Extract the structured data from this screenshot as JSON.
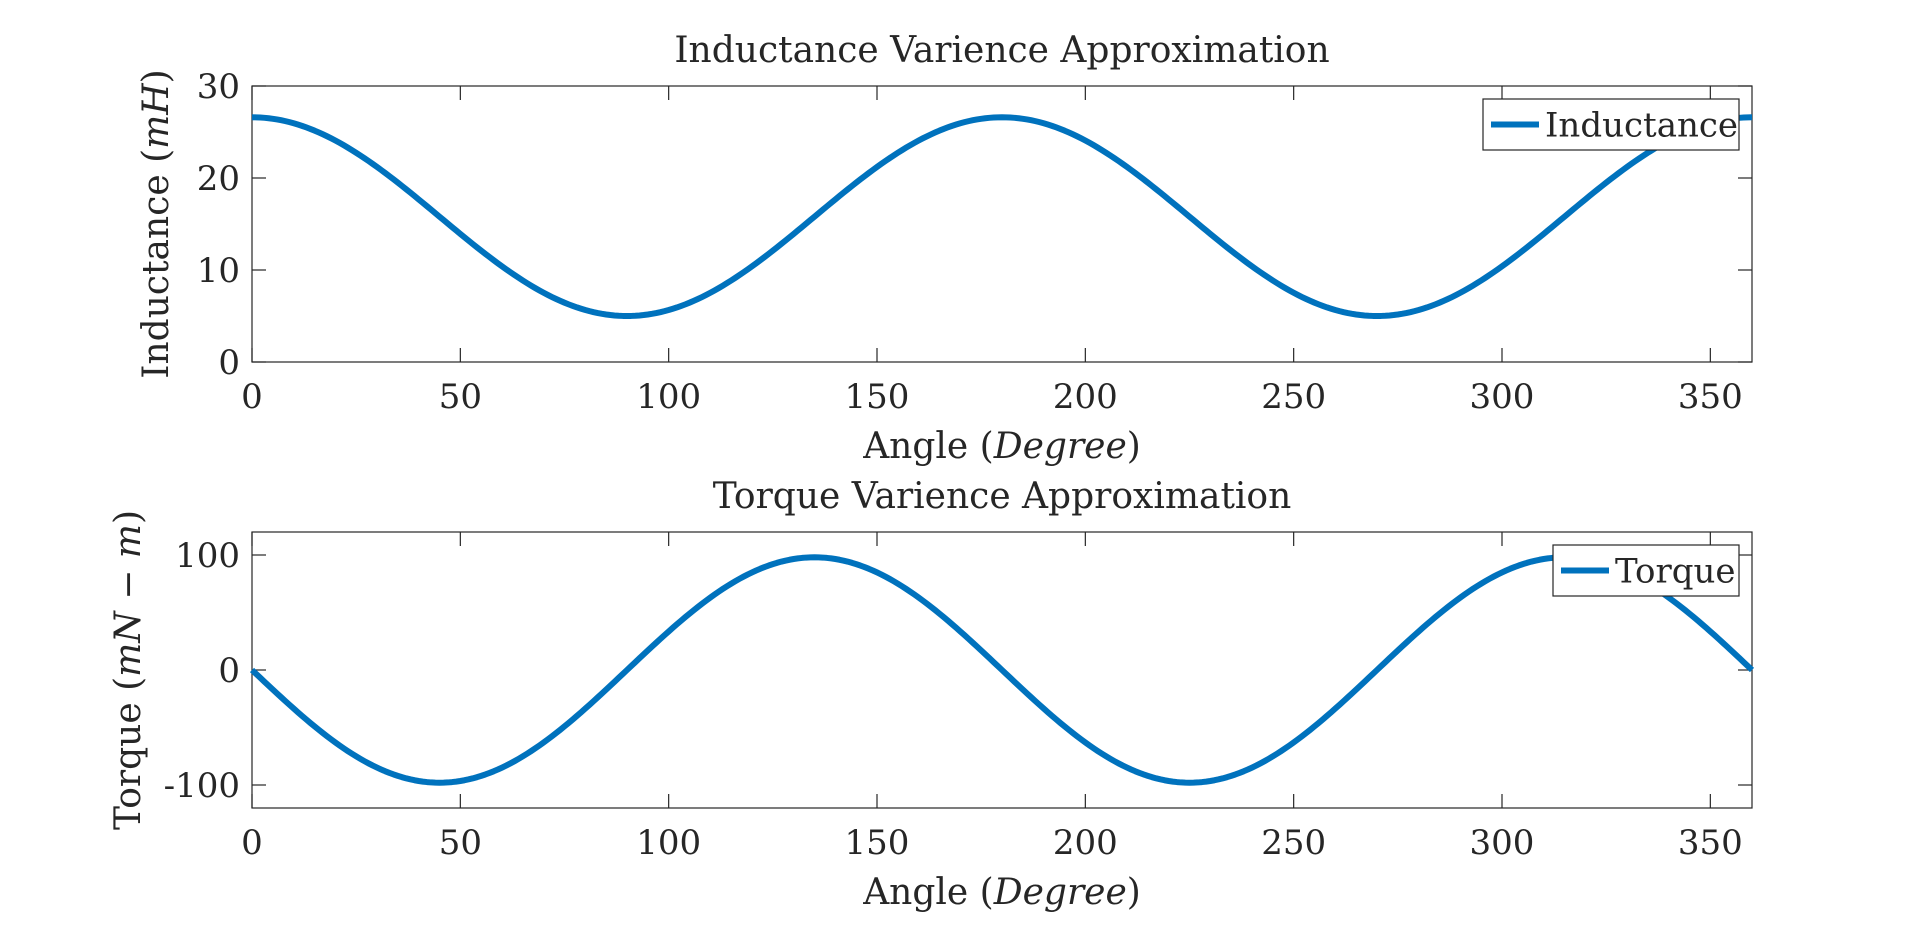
{
  "chart_data": [
    {
      "type": "line",
      "title": "Inductance Varience Approximation",
      "xlabel": "Angle",
      "xlabel_unit": "Degree",
      "ylabel": "Inductance",
      "ylabel_unit": "mH",
      "xlim": [
        0,
        360
      ],
      "ylim": [
        0,
        30
      ],
      "xticks": [
        0,
        50,
        100,
        150,
        200,
        250,
        300,
        350
      ],
      "yticks": [
        0,
        10,
        20,
        30
      ],
      "xtick_labels": [
        "0",
        "50",
        "100",
        "150",
        "200",
        "250",
        "300",
        "350"
      ],
      "ytick_labels": [
        "0",
        "10",
        "20",
        "30"
      ],
      "grid": false,
      "legend_position": "top-right",
      "series": [
        {
          "name": "Inductance",
          "color": "#0072BD",
          "x": [
            0,
            45,
            90,
            135,
            180,
            225,
            270,
            315,
            360
          ],
          "y": [
            26.6,
            15.8,
            5.0,
            15.8,
            26.6,
            15.8,
            5.0,
            15.8,
            26.6
          ],
          "shape": "cosine with period 180 degrees"
        }
      ]
    },
    {
      "type": "line",
      "title": "Torque Varience Approximation",
      "xlabel": "Angle",
      "xlabel_unit": "Degree",
      "ylabel": "Torque",
      "ylabel_unit": "mN − m",
      "xlim": [
        0,
        360
      ],
      "ylim": [
        -120,
        120
      ],
      "xticks": [
        0,
        50,
        100,
        150,
        200,
        250,
        300,
        350
      ],
      "yticks": [
        -100,
        0,
        100
      ],
      "xtick_labels": [
        "0",
        "50",
        "100",
        "150",
        "200",
        "250",
        "300",
        "350"
      ],
      "ytick_labels": [
        "-100",
        "0",
        "100"
      ],
      "grid": false,
      "legend_position": "top-right",
      "series": [
        {
          "name": "Torque",
          "color": "#0072BD",
          "x": [
            0,
            45,
            90,
            135,
            180,
            225,
            270,
            315,
            360
          ],
          "y": [
            0,
            -98,
            0,
            98,
            0,
            -98,
            0,
            98,
            0
          ],
          "shape": "negative sine with period 180 degrees"
        }
      ]
    }
  ]
}
